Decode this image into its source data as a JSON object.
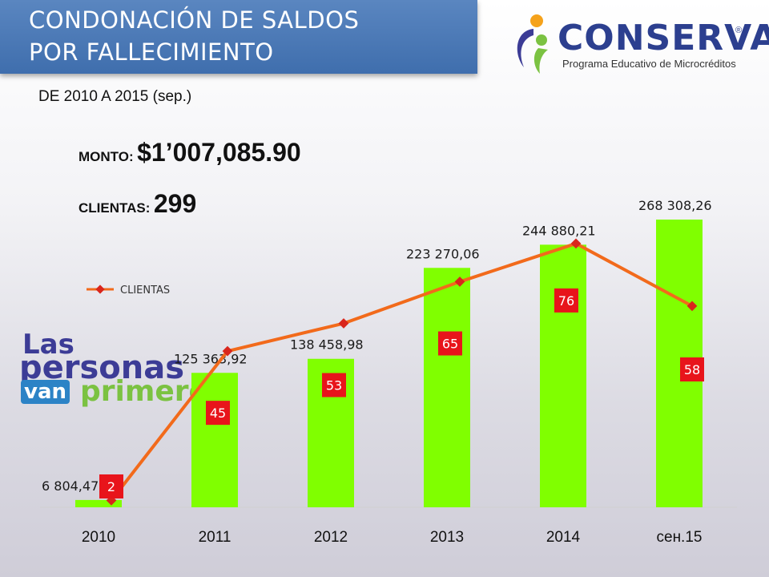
{
  "header": {
    "title_line1": "CONDONACIÓN DE SALDOS",
    "title_line2": "POR FALLECIMIENTO",
    "subtitle": "DE 2010 A 2015 (sep.)"
  },
  "summary": {
    "monto_label": "MONTO:",
    "monto_value": "$1’007,085.90",
    "clientas_label": "CLIENTAS:",
    "clientas_value": "299"
  },
  "logo": {
    "name": "CONSERVA",
    "registered": "®",
    "tagline": "Programa Educativo de Microcréditos"
  },
  "slogan": {
    "line1": "Las",
    "line2": "personas",
    "line3": "van",
    "line4": "primero."
  },
  "colors": {
    "bar": "#80ff00",
    "line": "#f26a1b",
    "marker": "#d9261c",
    "label_box": "#e8141b",
    "title_band": "#4a78b6"
  },
  "chart_data": {
    "type": "bar",
    "categories": [
      "2010",
      "2011",
      "2012",
      "2013",
      "2014",
      "сен.15"
    ],
    "series": [
      {
        "values": [
          6804.47,
          125363.92,
          138458.98,
          223270.06,
          244880.21,
          268308.26
        ],
        "labels": [
          "6 804,47",
          "125 363,92",
          "138 458,98",
          "223 270,06",
          "244 880,21",
          "268 308,26"
        ]
      },
      {
        "name": "CLIENTAS",
        "type": "line",
        "values": [
          2,
          45,
          53,
          65,
          76,
          58
        ],
        "labels": [
          "2",
          "45",
          "53",
          "65",
          "76",
          "58"
        ]
      }
    ],
    "ylim": [
      0,
      268308.26
    ],
    "y2lim": [
      0,
      100
    ],
    "legend": "middle-left",
    "grid": false
  }
}
